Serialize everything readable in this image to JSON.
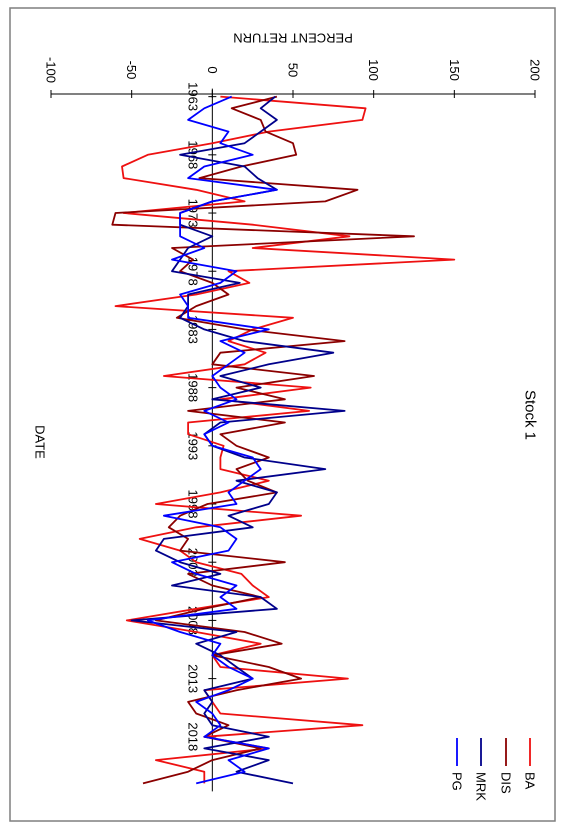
{
  "chart_data": {
    "type": "line",
    "title": "Stock 1",
    "xlabel": "DATE",
    "ylabel": "PERCENT RETURN",
    "ylim": [
      -100,
      200
    ],
    "yticks": [
      -100,
      -50,
      0,
      50,
      100,
      150,
      200
    ],
    "xlim": [
      1962,
      2023
    ],
    "xticks": [
      1963,
      1968,
      1973,
      1978,
      1983,
      1988,
      1993,
      1998,
      2003,
      2008,
      2013,
      2018
    ],
    "orientation": "rotated-90-clockwise",
    "legend_position": "top-right",
    "grid": false,
    "x": [
      1963,
      1964,
      1965,
      1966,
      1967,
      1968,
      1969,
      1970,
      1971,
      1972,
      1973,
      1974,
      1975,
      1976,
      1977,
      1978,
      1979,
      1980,
      1981,
      1982,
      1983,
      1984,
      1985,
      1986,
      1987,
      1988,
      1989,
      1990,
      1991,
      1992,
      1993,
      1994,
      1995,
      1996,
      1997,
      1998,
      1999,
      2000,
      2001,
      2002,
      2003,
      2004,
      2005,
      2006,
      2007,
      2008,
      2009,
      2010,
      2011,
      2012,
      2013,
      2014,
      2015,
      2016,
      2017,
      2018,
      2019,
      2020,
      2021,
      2022
    ],
    "series": [
      {
        "name": "BA",
        "color": "#ee1111",
        "values": [
          5,
          95,
          93,
          35,
          0,
          -40,
          -56,
          -55,
          -10,
          20,
          -55,
          25,
          85,
          25,
          150,
          10,
          23,
          -10,
          -60,
          50,
          25,
          10,
          33,
          20,
          -30,
          61,
          5,
          60,
          -15,
          -15,
          7,
          5,
          5,
          35,
          5,
          -35,
          55,
          -10,
          -45,
          -20,
          -10,
          18,
          25,
          35,
          -10,
          -53,
          -10,
          30,
          0,
          5,
          84,
          -5,
          0,
          5,
          93,
          -5,
          35,
          -35,
          -5,
          -5
        ]
      },
      {
        "name": "DIS",
        "color": "#8b0000",
        "values": [
          40,
          12,
          30,
          33,
          50,
          52,
          18,
          -8,
          90,
          70,
          -60,
          -62,
          125,
          -25,
          -12,
          -20,
          0,
          10,
          -10,
          -22,
          20,
          82,
          5,
          0,
          63,
          15,
          45,
          -15,
          45,
          5,
          15,
          35,
          15,
          22,
          40,
          -3,
          -20,
          -27,
          -15,
          -20,
          45,
          -15,
          0,
          30,
          -5,
          -35,
          20,
          43,
          0,
          35,
          55,
          15,
          -15,
          -10,
          10,
          -5,
          30,
          0,
          -15,
          -43
        ]
      },
      {
        "name": "MRK",
        "color": "#00008b",
        "values": [
          39,
          30,
          40,
          30,
          20,
          -20,
          20,
          28,
          40,
          0,
          -20,
          -20,
          0,
          -15,
          -20,
          -25,
          17,
          -15,
          -15,
          -20,
          -5,
          20,
          75,
          35,
          5,
          30,
          0,
          82,
          5,
          -5,
          0,
          20,
          70,
          15,
          40,
          35,
          10,
          25,
          -30,
          -35,
          -20,
          5,
          -25,
          30,
          40,
          -50,
          15,
          -10,
          5,
          15,
          25,
          -5,
          0,
          -5,
          0,
          35,
          -5,
          35,
          15,
          50
        ]
      },
      {
        "name": "PG",
        "color": "#0000ff",
        "values": [
          12,
          -5,
          -15,
          10,
          5,
          25,
          -5,
          -15,
          40,
          0,
          -20,
          -20,
          -20,
          -5,
          -25,
          15,
          5,
          -20,
          -15,
          -15,
          35,
          5,
          20,
          10,
          0,
          5,
          15,
          -5,
          10,
          -5,
          0,
          25,
          30,
          20,
          10,
          15,
          -30,
          5,
          15,
          10,
          -25,
          -10,
          15,
          5,
          15,
          -40,
          -20,
          5,
          0,
          10,
          25,
          10,
          -10,
          0,
          5,
          -5,
          35,
          10,
          20,
          -10
        ]
      }
    ]
  }
}
